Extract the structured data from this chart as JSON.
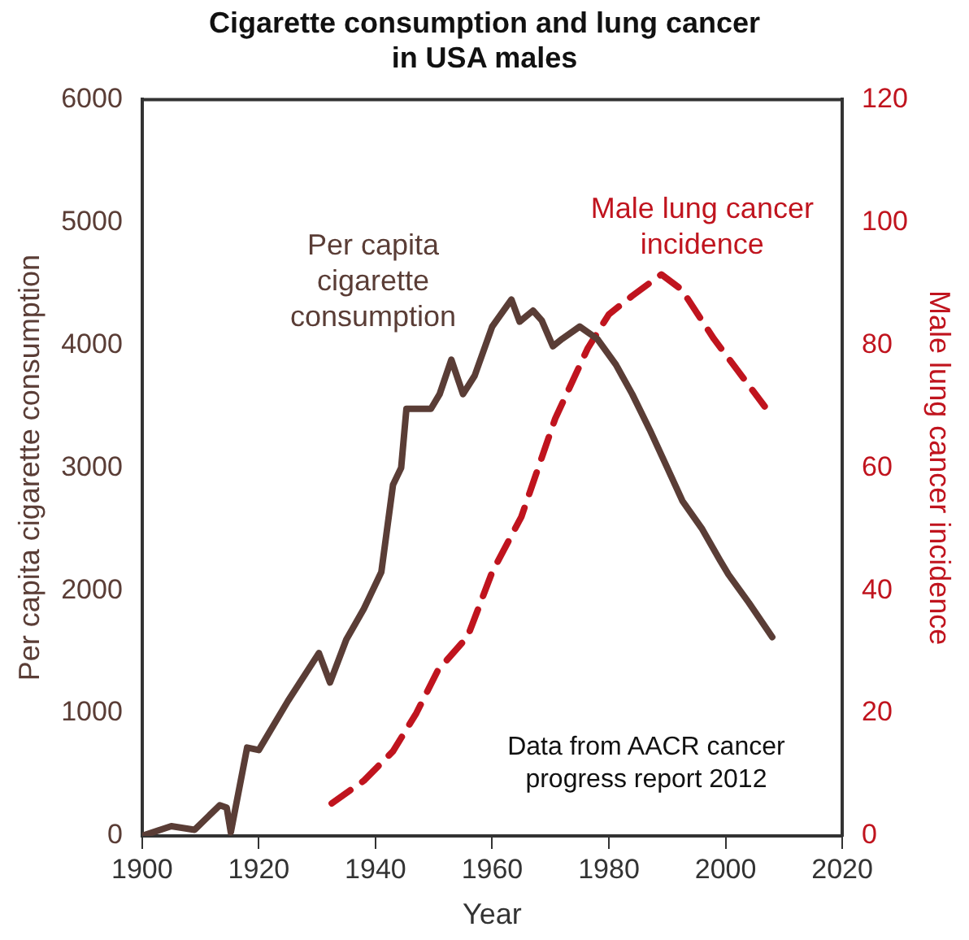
{
  "chart_data": {
    "type": "line",
    "title": "Cigarette consumption and lung cancer\nin USA males",
    "xlabel": "Year",
    "ylabel": "Per capita cigarette consumption",
    "y2label": "Male lung cancer incidence",
    "xlim": [
      1900,
      2020
    ],
    "xticks": [
      1900,
      1920,
      1940,
      1960,
      1980,
      2000,
      2020
    ],
    "ylim": [
      0,
      6000
    ],
    "yticks": [
      0,
      1000,
      2000,
      3000,
      4000,
      5000,
      6000
    ],
    "y2lim": [
      0,
      120
    ],
    "y2ticks": [
      0,
      20,
      40,
      60,
      80,
      100,
      120
    ],
    "grid": false,
    "legend": false,
    "marker": "none",
    "series": [
      {
        "name": "Per capita cigarette consumption",
        "color": "#5a3d36",
        "line_style": "solid",
        "x": [
          1900,
          1905,
          1909,
          1913.3,
          1914.5,
          1915.2,
          1918,
          1920,
          1925,
          1930.3,
          1932.2,
          1935,
          1938,
          1941,
          1943,
          1944.4,
          1945.3,
          1949.5,
          1951,
          1953,
          1955,
          1957,
          1960,
          1963.3,
          1964.7,
          1967,
          1968.5,
          1970.4,
          1972,
          1975,
          1978,
          1981.2,
          1984,
          1987,
          1990,
          1992.6,
          1996,
          1999,
          2000.5,
          2004,
          2008
        ],
        "values": [
          0,
          80,
          50,
          250,
          230,
          30,
          720,
          700,
          1100,
          1490,
          1250,
          1600,
          1850,
          2150,
          2860,
          3000,
          3480,
          3480,
          3600,
          3880,
          3600,
          3750,
          4150,
          4370,
          4190,
          4280,
          4200,
          3990,
          4050,
          4150,
          4050,
          3840,
          3600,
          3310,
          3000,
          2730,
          2500,
          2250,
          2130,
          1900,
          1620
        ]
      },
      {
        "name": "Male lung cancer incidence",
        "color": "#c0141e",
        "line_style": "dashed",
        "axis": "y2",
        "x": [
          1932.5,
          1938,
          1943,
          1947,
          1950.7,
          1955.8,
          1960,
          1965,
          1970.8,
          1976.4,
          1980,
          1984,
          1989,
          1992.5,
          1998,
          2006.7
        ],
        "values": [
          5.3,
          9,
          13.8,
          20,
          27,
          32.5,
          43,
          52,
          68,
          79.5,
          85,
          88,
          91.5,
          89,
          81,
          70
        ]
      }
    ],
    "annotations": [
      "Data from AACR cancer\nprogress report 2012"
    ]
  }
}
